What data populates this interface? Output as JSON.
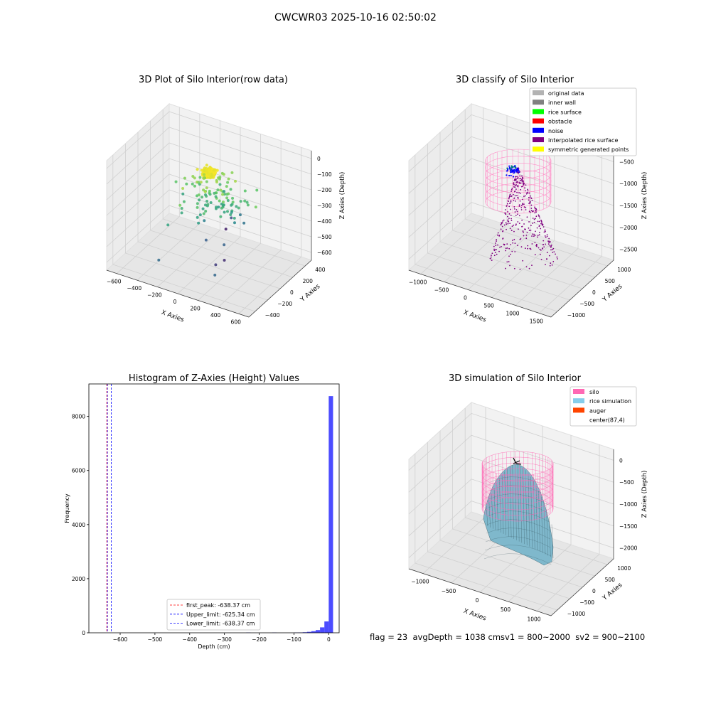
{
  "figure": {
    "suptitle": "CWCWR03 2025-10-16 02:50:02",
    "footer": "flag = 23  avgDepth = 1038 cmsv1 = 800~2000  sv2 = 900~2100"
  },
  "chart_data": [
    {
      "type": "scatter",
      "subtype": "3d",
      "title": "3D Plot of Silo Interior(row data)",
      "xlabel": "X Axies",
      "ylabel": "Y Axies",
      "zlabel": "Z Axies (Depth)",
      "x_ticks": [
        "−600",
        "−400",
        "−200",
        "0",
        "200",
        "400",
        "600"
      ],
      "y_ticks": [
        "−400",
        "−200",
        "0",
        "200",
        "400"
      ],
      "z_ticks": [
        "0",
        "−100",
        "−200",
        "−300",
        "−400",
        "−500",
        "−600"
      ],
      "xlim": [
        -650,
        650
      ],
      "ylim": [
        -500,
        500
      ],
      "zlim": [
        -680,
        20
      ],
      "colormap": "viridis",
      "grid": true
    },
    {
      "type": "scatter",
      "subtype": "3d",
      "title": "3D classify of Silo Interior",
      "xlabel": "X Axies",
      "ylabel": "Y Axies",
      "zlabel": "Z Axies (Depth)",
      "x_ticks": [
        "−1000",
        "−500",
        "0",
        "500",
        "1000",
        "1500"
      ],
      "y_ticks": [
        "−1000",
        "−500",
        "0",
        "500",
        "1000"
      ],
      "z_ticks": [
        "−500",
        "−1000",
        "−1500",
        "−2000",
        "−2500"
      ],
      "legend": [
        {
          "label": "original data",
          "color": "#b3b3b3"
        },
        {
          "label": "inner wall",
          "color": "#808080"
        },
        {
          "label": "rice surface",
          "color": "#00ff00"
        },
        {
          "label": "obstacle",
          "color": "#ff0000"
        },
        {
          "label": "noise",
          "color": "#0000ff"
        },
        {
          "label": "interpolated rice surface",
          "color": "#800080"
        },
        {
          "label": "symmetric generated points",
          "color": "#ffff00"
        }
      ],
      "legend_position": "top-right",
      "grid": true
    },
    {
      "type": "bar",
      "subtype": "histogram",
      "title": "Histogram of Z-Axies (Height) Values",
      "xlabel": "Depth (cm)",
      "ylabel": "Frequency",
      "xlim": [
        -690,
        30
      ],
      "ylim": [
        0,
        9200
      ],
      "x_ticks": [
        -600,
        -500,
        -400,
        -300,
        -200,
        -100,
        0
      ],
      "x_tick_labels": [
        "−600",
        "−500",
        "−400",
        "−300",
        "−200",
        "−100",
        "0"
      ],
      "y_ticks": [
        0,
        2000,
        4000,
        6000,
        8000
      ],
      "y_tick_labels": [
        "0",
        "2000",
        "4000",
        "6000",
        "8000"
      ],
      "bin_width": 12.5,
      "bins": [
        {
          "x0": -237.5,
          "count": 10
        },
        {
          "x0": -162.5,
          "count": 8
        },
        {
          "x0": -100,
          "count": 8
        },
        {
          "x0": -87.5,
          "count": 12
        },
        {
          "x0": -75,
          "count": 20
        },
        {
          "x0": -62.5,
          "count": 35
        },
        {
          "x0": -50,
          "count": 60
        },
        {
          "x0": -37.5,
          "count": 100
        },
        {
          "x0": -25,
          "count": 200
        },
        {
          "x0": -12.5,
          "count": 420
        },
        {
          "x0": 0,
          "count": 8750
        }
      ],
      "bar_color": "#0000ff",
      "vlines": [
        {
          "x": -638.37,
          "color": "#ff0000",
          "label": "first_peak: -638.37 cm"
        },
        {
          "x": -625.34,
          "color": "#0000ff",
          "label": "Upper_limit: -625.34 cm"
        },
        {
          "x": -638.37,
          "color": "#0000ff",
          "label": "Lower_limit: -638.37 cm"
        }
      ],
      "legend_position": "lower-center"
    },
    {
      "type": "surface",
      "subtype": "3d",
      "title": "3D simulation of Silo Interior",
      "xlabel": "X Axies",
      "ylabel": "Y Axies",
      "zlabel": "Z Axies (Depth)",
      "x_ticks": [
        "−1000",
        "−500",
        "0",
        "500",
        "1000"
      ],
      "y_ticks": [
        "−1000",
        "−500",
        "0",
        "500",
        "1000"
      ],
      "z_ticks": [
        "0",
        "−500",
        "−1000",
        "−1500",
        "−2000"
      ],
      "legend": [
        {
          "label": "silo",
          "color": "#ff69b4"
        },
        {
          "label": "rice simulation",
          "color": "#87ceeb"
        },
        {
          "label": "auger",
          "color": "#ff4500"
        },
        {
          "label": "center(87,4)",
          "color": "#ffffff"
        }
      ],
      "legend_position": "top-right",
      "grid": true
    }
  ]
}
